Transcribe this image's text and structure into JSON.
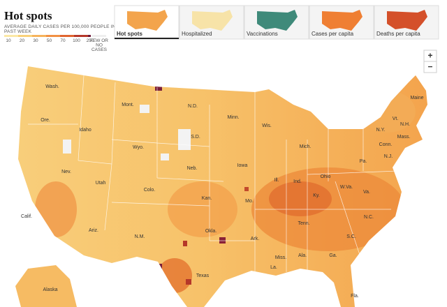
{
  "header": {
    "title": "Hot spots",
    "subtitle_lines": [
      "AVERAGE DAILY CASES PER 100,000 PEOPLE IN",
      "PAST WEEK"
    ]
  },
  "legend": {
    "ticks": [
      10,
      20,
      30,
      50,
      70,
      100,
      250
    ],
    "none_lines": [
      "FEW OR",
      "NO",
      "CASES"
    ]
  },
  "tabs": [
    {
      "label": "Hot spots"
    },
    {
      "label": "Hospitalized"
    },
    {
      "label": "Vaccinations"
    },
    {
      "label": "Cases per capita"
    },
    {
      "label": "Deaths per capita"
    }
  ],
  "zoom": {
    "in": "+",
    "out": "−"
  },
  "states": [
    "Wash.",
    "Mont.",
    "N.D.",
    "Minn.",
    "Ore.",
    "Idaho",
    "S.D.",
    "Wyo.",
    "Wis.",
    "Mich.",
    "N.Y.",
    "Vt.",
    "N.H.",
    "Maine",
    "Mass.",
    "Conn.",
    "Nev.",
    "Neb.",
    "Iowa",
    "Pa.",
    "N.J.",
    "Ill.",
    "Ind.",
    "Ohio",
    "Utah",
    "Colo.",
    "Calif.",
    "Kan.",
    "Mo.",
    "Ky.",
    "W.Va.",
    "Va.",
    "Tenn.",
    "N.C.",
    "Okla.",
    "Ariz.",
    "N.M.",
    "Ark.",
    "S.C.",
    "Miss.",
    "Ala.",
    "Ga.",
    "Texas",
    "La.",
    "Fla.",
    "Alaska"
  ]
}
